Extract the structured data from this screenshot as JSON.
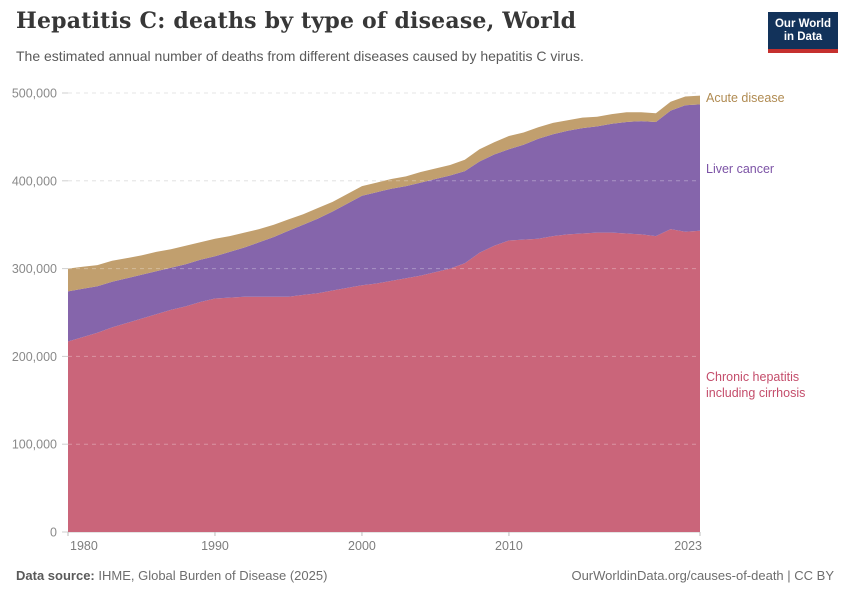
{
  "header": {
    "title": "Hepatitis C: deaths by type of disease, World",
    "subtitle": "The estimated annual number of deaths from different diseases caused by hepatitis C virus.",
    "logo": {
      "line1": "Our World",
      "line2": "in Data",
      "bg_color": "#12325a",
      "accent_color": "#c5302e"
    }
  },
  "chart_data": {
    "type": "area",
    "stacked": true,
    "title": "Hepatitis C: deaths by type of disease, World",
    "xlabel": "",
    "ylabel": "",
    "grid": "dashed",
    "legend_position": "right-of-plot",
    "xlim": [
      1980,
      2023
    ],
    "ylim": [
      0,
      500000
    ],
    "x": [
      1980,
      1981,
      1982,
      1983,
      1984,
      1985,
      1986,
      1987,
      1988,
      1989,
      1990,
      1991,
      1992,
      1993,
      1994,
      1995,
      1996,
      1997,
      1998,
      1999,
      2000,
      2001,
      2002,
      2003,
      2004,
      2005,
      2006,
      2007,
      2008,
      2009,
      2010,
      2011,
      2012,
      2013,
      2014,
      2015,
      2016,
      2017,
      2018,
      2019,
      2020,
      2021,
      2022,
      2023
    ],
    "series": [
      {
        "name": "Chronic hepatitis including cirrhosis",
        "color": "#ca657a",
        "label_color": "#c44d6b",
        "values": [
          217000,
          222000,
          227000,
          233000,
          238000,
          243000,
          248000,
          253000,
          257000,
          262000,
          266000,
          267000,
          268000,
          268000,
          268000,
          268000,
          270000,
          272000,
          275000,
          278000,
          281000,
          283000,
          286000,
          289000,
          292000,
          296000,
          300000,
          306000,
          318000,
          326000,
          332000,
          333000,
          334000,
          337000,
          339000,
          340000,
          341000,
          341000,
          340000,
          339000,
          337000,
          345000,
          342000,
          343000
        ]
      },
      {
        "name": "Liver cancer",
        "color": "#8565ab",
        "label_color": "#7c53a6",
        "values": [
          57000,
          55000,
          53000,
          52000,
          51000,
          50000,
          49000,
          48000,
          48000,
          48000,
          48000,
          52000,
          56000,
          62000,
          68000,
          75000,
          80000,
          85000,
          90000,
          96000,
          102000,
          104000,
          105000,
          105000,
          106000,
          106000,
          106000,
          105000,
          104000,
          104000,
          104000,
          108000,
          114000,
          116000,
          118000,
          120000,
          121000,
          124000,
          127000,
          129000,
          130000,
          135000,
          144000,
          144000
        ]
      },
      {
        "name": "Acute disease",
        "color": "#c19f6e",
        "label_color": "#b08b52",
        "values": [
          26000,
          25000,
          24000,
          24000,
          23000,
          22000,
          22000,
          21000,
          21000,
          20000,
          20000,
          18000,
          17000,
          15000,
          14000,
          13000,
          12000,
          12000,
          11000,
          11000,
          11000,
          11000,
          11000,
          11000,
          12000,
          12000,
          12000,
          13000,
          14000,
          14000,
          15000,
          14000,
          13000,
          13000,
          12000,
          12000,
          11000,
          11000,
          11000,
          10000,
          10000,
          10000,
          10000,
          10000
        ]
      }
    ],
    "yticks": [
      {
        "v": 0,
        "label": "0"
      },
      {
        "v": 100000,
        "label": "100,000"
      },
      {
        "v": 200000,
        "label": "200,000"
      },
      {
        "v": 300000,
        "label": "300,000"
      },
      {
        "v": 400000,
        "label": "400,000"
      },
      {
        "v": 500000,
        "label": "500,000"
      }
    ],
    "xticks": [
      {
        "v": 1980,
        "label": "1980"
      },
      {
        "v": 1990,
        "label": "1990"
      },
      {
        "v": 2000,
        "label": "2000"
      },
      {
        "v": 2010,
        "label": "2010"
      },
      {
        "v": 2023,
        "label": "2023"
      }
    ]
  },
  "footer": {
    "source_label": "Data source:",
    "source_value": " IHME, Global Burden of Disease (2025)",
    "rights": "OurWorldinData.org/causes-of-death | CC BY"
  }
}
